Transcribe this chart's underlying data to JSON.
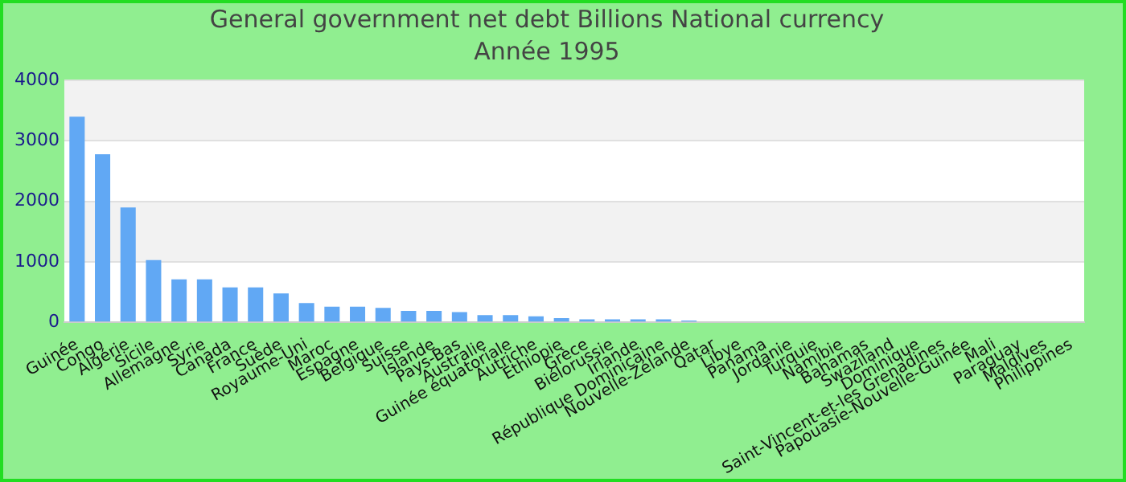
{
  "chart_data": {
    "type": "bar",
    "title": "General government net debt Billions National currency",
    "subtitle": "Année 1995",
    "categories": [
      "Guinée",
      "Congo",
      "Algérie",
      "Sicile",
      "Allemagne",
      "Syrie",
      "Canada",
      "France",
      "Suède",
      "Royaume-Uni",
      "Maroc",
      "Espagne",
      "Belgique",
      "Suisse",
      "Islande",
      "Pays-Bas",
      "Australie",
      "Guinée équatoriale",
      "Autriche",
      "Éthiopie",
      "Grèce",
      "Biélorussie",
      "Irlande",
      "République Dominicaine",
      "Nouvelle-Zélande",
      "Qatar",
      "Libye",
      "Panama",
      "Jordanie",
      "Turquie",
      "Namibie",
      "Bahamas",
      "Swaziland",
      "Dominique",
      "Saint-Vincent-et-les Grenadines",
      "Papouasie-Nouvelle-Guinée",
      "Mali",
      "Paraguay",
      "Maldives",
      "Philippines"
    ],
    "values": [
      3400,
      2780,
      1900,
      1030,
      710,
      710,
      580,
      580,
      480,
      320,
      260,
      260,
      240,
      190,
      190,
      170,
      120,
      120,
      100,
      70,
      50,
      50,
      50,
      50,
      30,
      null,
      null,
      null,
      null,
      null,
      null,
      null,
      null,
      null,
      null,
      null,
      null,
      null,
      null,
      null
    ],
    "color": "#61a8f4",
    "ylim": [
      0,
      4000
    ],
    "yticks": [
      0,
      1000,
      2000,
      3000,
      4000
    ],
    "grid": "y",
    "legend": false
  }
}
